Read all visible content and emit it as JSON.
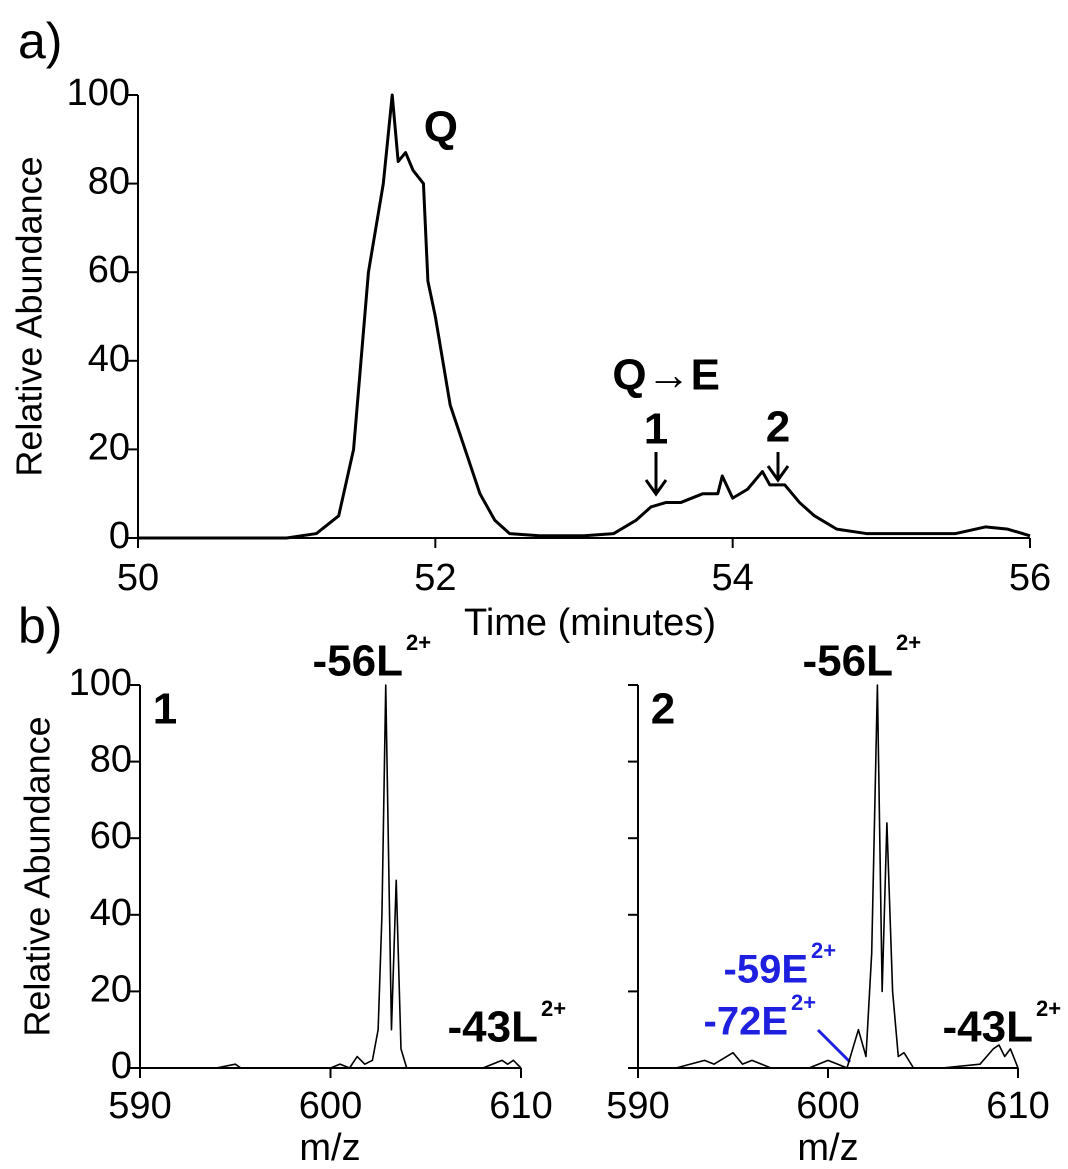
{
  "chart_data": [
    {
      "type": "line",
      "panel_label": "a)",
      "xlabel": "Time (minutes)",
      "ylabel": "Relative Abundance",
      "x": [
        50,
        51,
        51.2,
        51.35,
        51.45,
        51.5,
        51.55,
        51.6,
        51.65,
        51.71,
        51.75,
        51.8,
        51.85,
        51.92,
        51.95,
        52.0,
        52.05,
        52.1,
        52.2,
        52.3,
        52.4,
        52.5,
        52.7,
        53.0,
        53.2,
        53.35,
        53.45,
        53.55,
        53.65,
        53.8,
        53.9,
        53.93,
        54.0,
        54.1,
        54.2,
        54.25,
        54.35,
        54.45,
        54.55,
        54.7,
        54.9,
        55.5,
        55.7,
        55.85,
        56
      ],
      "values": [
        0,
        0,
        1,
        5,
        20,
        40,
        60,
        70,
        80,
        100,
        85,
        87,
        83,
        80,
        58,
        50,
        40,
        30,
        20,
        10,
        4,
        1,
        0.5,
        0.5,
        1,
        4,
        7,
        8,
        8,
        10,
        10,
        14,
        9,
        11,
        15,
        12,
        12,
        8,
        5,
        2,
        1,
        1,
        2.5,
        2,
        0.5
      ],
      "color": "#000000",
      "xlim": [
        50,
        56
      ],
      "xticks": [
        50,
        52,
        54,
        56
      ],
      "ylim": [
        0,
        100
      ],
      "yticks": [
        0,
        20,
        40,
        60,
        80,
        100
      ],
      "ytick_labels": true,
      "annotations": [
        {
          "text": "Q"
        },
        {
          "text": "Q→E"
        },
        {
          "text": "1"
        },
        {
          "text": "2"
        }
      ]
    },
    {
      "type": "line",
      "panel_label": "b)",
      "xlabel": "m/z",
      "ylabel": "Relative Abundance",
      "x": [
        590,
        592,
        594,
        595,
        595.3,
        596,
        598,
        600,
        600.5,
        601,
        601.4,
        601.8,
        602.2,
        602.5,
        602.7,
        602.9,
        603.2,
        603.45,
        603.7,
        604,
        604.5,
        606,
        608,
        609,
        609.3,
        609.6,
        610
      ],
      "values": [
        0,
        0,
        0,
        1,
        0,
        0,
        0,
        0,
        1,
        0,
        3,
        1,
        2,
        10,
        40,
        100,
        10,
        49,
        5,
        0,
        0,
        0,
        0,
        2,
        1,
        2,
        0
      ],
      "color": "#000000",
      "xlim": [
        590,
        610
      ],
      "xticks": [
        590,
        600,
        610
      ],
      "ylim": [
        0,
        100
      ],
      "yticks": [
        0,
        20,
        40,
        60,
        80,
        100
      ],
      "ytick_labels": true,
      "annotations": [
        {
          "text": "1"
        },
        {
          "text": "-56L",
          "sup": "2+"
        },
        {
          "text": "-43L",
          "sup": "2+"
        }
      ]
    },
    {
      "type": "line",
      "xlabel": "m/z",
      "x": [
        590,
        592,
        593.5,
        594,
        595,
        595.5,
        596,
        597,
        599,
        600,
        600.5,
        601,
        601.6,
        602,
        602.3,
        602.6,
        602.85,
        603.1,
        603.4,
        603.7,
        604,
        604.5,
        606,
        608,
        608.7,
        609,
        609.3,
        609.6,
        610
      ],
      "values": [
        0,
        0,
        2,
        1,
        4,
        1,
        2,
        0,
        0,
        2,
        1,
        0,
        10,
        3,
        30,
        100,
        20,
        64,
        20,
        3,
        4,
        0,
        0,
        1,
        5,
        6,
        3,
        5,
        0
      ],
      "color": "#000000",
      "xlim": [
        590,
        610
      ],
      "xticks": [
        590,
        600,
        610
      ],
      "ylim": [
        0,
        100
      ],
      "yticks": [
        0,
        20,
        40,
        60,
        80,
        100
      ],
      "ytick_labels": false,
      "annotations": [
        {
          "text": "2"
        },
        {
          "text": "-56L",
          "sup": "2+"
        },
        {
          "text": "-59E",
          "sup": "2+",
          "color": "#1f1fe0"
        },
        {
          "text": "-72E",
          "sup": "2+",
          "color": "#1f1fe0"
        },
        {
          "text": "-43L",
          "sup": "2+"
        }
      ]
    }
  ]
}
